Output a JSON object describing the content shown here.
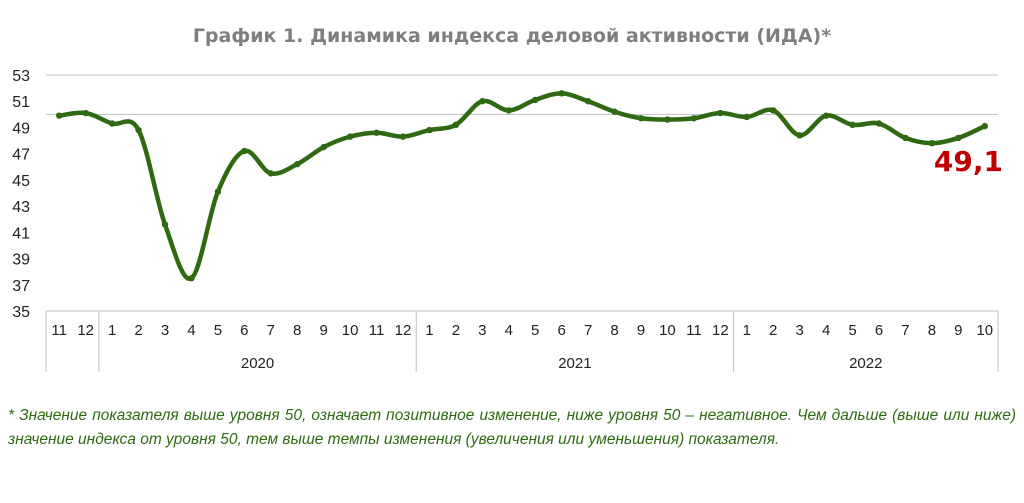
{
  "chart_data": {
    "type": "line",
    "title": "График 1. Динамика индекса деловой активности (ИДА)*",
    "xlabel": "",
    "ylabel": "",
    "ylim": [
      35,
      53
    ],
    "y_ticks": [
      35,
      37,
      39,
      41,
      43,
      45,
      47,
      49,
      51,
      53
    ],
    "reference_line": 50,
    "grid": false,
    "x": [
      "11",
      "12",
      "1",
      "2",
      "3",
      "4",
      "5",
      "6",
      "7",
      "8",
      "9",
      "10",
      "11",
      "12",
      "1",
      "2",
      "3",
      "4",
      "5",
      "6",
      "7",
      "8",
      "9",
      "10",
      "11",
      "12",
      "1",
      "2",
      "3",
      "4",
      "5",
      "6",
      "7",
      "8",
      "9",
      "10"
    ],
    "year_groups": [
      {
        "label": "",
        "count": 2
      },
      {
        "label": "2020",
        "count": 12
      },
      {
        "label": "2021",
        "count": 12
      },
      {
        "label": "2022",
        "count": 10
      }
    ],
    "series": [
      {
        "values": [
          49.9,
          50.1,
          49.3,
          48.8,
          41.6,
          37.5,
          44.1,
          47.2,
          45.5,
          46.2,
          47.5,
          48.3,
          48.6,
          48.3,
          48.8,
          49.2,
          51.0,
          50.3,
          51.1,
          51.6,
          51.0,
          50.2,
          49.7,
          49.6,
          49.7,
          50.1,
          49.8,
          50.3,
          48.4,
          49.9,
          49.2,
          49.3,
          48.2,
          47.8,
          48.2,
          49.1
        ],
        "color": "#2f6a12"
      }
    ],
    "last_value_label": "49,1",
    "last_value_color": "#c00000"
  },
  "footnote": "*  Значение показателя выше уровня 50, означает позитивное изменение, ниже уровня 50 – негативное. Чем дальше (выше или ниже) значение индекса от уровня 50, тем выше темпы изменения (увеличения или уменьшения) показателя."
}
